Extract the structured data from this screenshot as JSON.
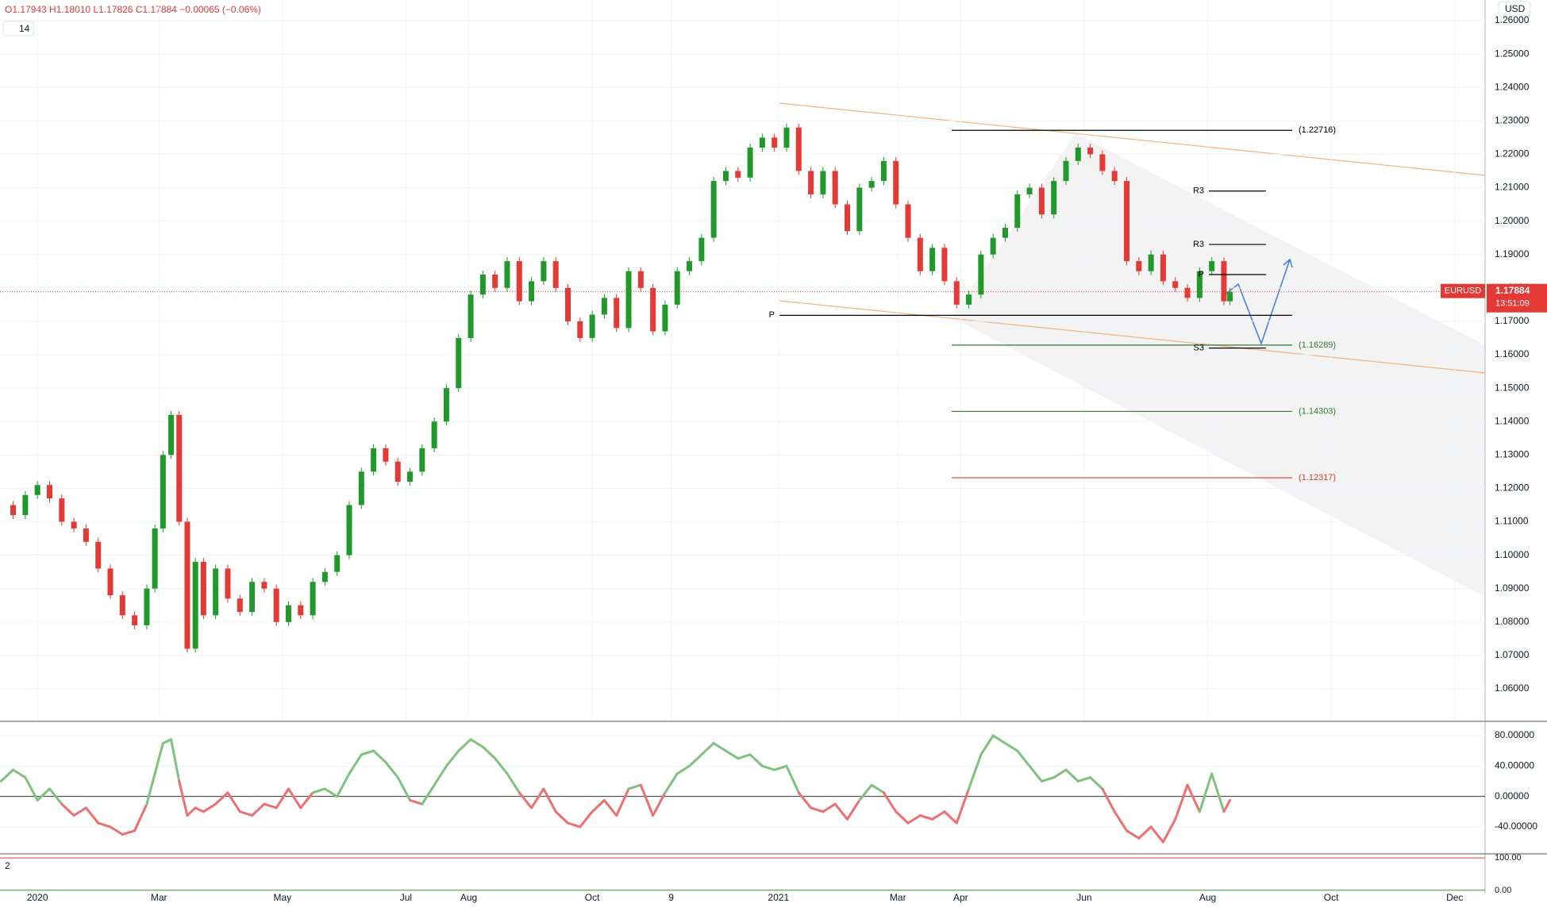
{
  "header": {
    "ohlc": "O1.17943 H1.18010 L1.17826 C1.17884 −0.00065 (−0.06%)",
    "interval": "14",
    "currency": "USD"
  },
  "chart_data": [
    {
      "type": "candle",
      "name": "EURUSD",
      "last_label": "1.17884",
      "countdown": "13:51:09",
      "last": 1.17884,
      "up_color": "#1f9a2a",
      "down_color": "#e53935",
      "x": [
        -18,
        -12,
        -6,
        0,
        6,
        12,
        18,
        24,
        30,
        36,
        42,
        48,
        54,
        58,
        62,
        66,
        70,
        74,
        78,
        82,
        88,
        94,
        100,
        106,
        112,
        118,
        124,
        130,
        136,
        142,
        148,
        154,
        160,
        166,
        172,
        178,
        184,
        190,
        196,
        202,
        208,
        214,
        220,
        226,
        232,
        238,
        244,
        250,
        256,
        262,
        268,
        274,
        280,
        286,
        292,
        298,
        304,
        310,
        316,
        322,
        328,
        334,
        340,
        346,
        352,
        358,
        364,
        370,
        376,
        382,
        388,
        394,
        400,
        406,
        412,
        418,
        424,
        430,
        436,
        442,
        448,
        454,
        460,
        466,
        472,
        478,
        484,
        490,
        496,
        502,
        508,
        514,
        520,
        526,
        532,
        538,
        544,
        550,
        556,
        562,
        568,
        574,
        580,
        586,
        589
      ],
      "values": [
        1.115,
        1.112,
        1.118,
        1.121,
        1.117,
        1.11,
        1.108,
        1.104,
        1.096,
        1.088,
        1.082,
        1.079,
        1.09,
        1.108,
        1.13,
        1.142,
        1.11,
        1.072,
        1.098,
        1.082,
        1.096,
        1.087,
        1.083,
        1.092,
        1.09,
        1.08,
        1.085,
        1.082,
        1.092,
        1.095,
        1.1,
        1.115,
        1.125,
        1.132,
        1.128,
        1.122,
        1.125,
        1.132,
        1.14,
        1.15,
        1.165,
        1.178,
        1.184,
        1.18,
        1.188,
        1.176,
        1.182,
        1.188,
        1.18,
        1.17,
        1.165,
        1.172,
        1.177,
        1.168,
        1.185,
        1.18,
        1.167,
        1.175,
        1.185,
        1.188,
        1.195,
        1.212,
        1.215,
        1.213,
        1.222,
        1.225,
        1.222,
        1.228,
        1.215,
        1.208,
        1.215,
        1.205,
        1.197,
        1.21,
        1.212,
        1.218,
        1.205,
        1.195,
        1.185,
        1.192,
        1.182,
        1.175,
        1.178,
        1.19,
        1.195,
        1.198,
        1.208,
        1.21,
        1.202,
        1.212,
        1.218,
        1.222,
        1.22,
        1.215,
        1.212,
        1.188,
        1.185,
        1.19,
        1.182,
        1.18,
        1.177,
        1.185,
        1.188,
        1.176,
        1.17884
      ],
      "xlim": [
        -18.5,
        715
      ],
      "xticks": [
        {
          "value": 0,
          "label": "2020"
        },
        {
          "value": 60,
          "label": "Mar"
        },
        {
          "value": 121,
          "label": "May"
        },
        {
          "value": 182,
          "label": "Jul"
        },
        {
          "value": 213,
          "label": "Aug"
        },
        {
          "value": 274,
          "label": "Oct"
        },
        {
          "value": 313,
          "label": "9"
        },
        {
          "value": 366,
          "label": "2021"
        },
        {
          "value": 425,
          "label": "Mar"
        },
        {
          "value": 456,
          "label": "Apr"
        },
        {
          "value": 517,
          "label": "Jun"
        },
        {
          "value": 578,
          "label": "Aug"
        },
        {
          "value": 639,
          "label": "Oct"
        },
        {
          "value": 700,
          "label": "Dec"
        }
      ],
      "ylim": [
        1.05074,
        1.26618
      ],
      "yticks": [
        {
          "value": 1.06,
          "label": "1.06000"
        },
        {
          "value": 1.07,
          "label": "1.07000"
        },
        {
          "value": 1.08,
          "label": "1.08000"
        },
        {
          "value": 1.09,
          "label": "1.09000"
        },
        {
          "value": 1.1,
          "label": "1.10000"
        },
        {
          "value": 1.11,
          "label": "1.11000"
        },
        {
          "value": 1.12,
          "label": "1.12000"
        },
        {
          "value": 1.13,
          "label": "1.13000"
        },
        {
          "value": 1.14,
          "label": "1.14000"
        },
        {
          "value": 1.15,
          "label": "1.15000"
        },
        {
          "value": 1.16,
          "label": "1.16000"
        },
        {
          "value": 1.17,
          "label": "1.17000"
        },
        {
          "value": 1.18,
          "label": "1.18000"
        },
        {
          "value": 1.19,
          "label": "1.19000"
        },
        {
          "value": 1.2,
          "label": "1.20000"
        },
        {
          "value": 1.21,
          "label": "1.21000"
        },
        {
          "value": 1.22,
          "label": "1.22000"
        },
        {
          "value": 1.23,
          "label": "1.23000"
        },
        {
          "value": 1.24,
          "label": "1.24000"
        },
        {
          "value": 1.25,
          "label": "1.25000"
        },
        {
          "value": 1.26,
          "label": "1.26000"
        }
      ],
      "grid": true,
      "levels": [
        {
          "label": "(1.22716)",
          "value": 1.22716,
          "color": "#000000"
        },
        {
          "label": "(1.16289)",
          "value": 1.16289,
          "color": "#2e7d32"
        },
        {
          "label": "(1.14303)",
          "value": 1.14303,
          "color": "#2e7d32"
        },
        {
          "label": "(1.12317)",
          "value": 1.12317,
          "color": "#e53935"
        },
        {
          "label": "R3",
          "value": 1.209,
          "color": "#000000"
        },
        {
          "label": "R3",
          "value": 1.193,
          "color": "#000000"
        },
        {
          "label": "P",
          "value": 1.1718,
          "color": "#000000"
        },
        {
          "label": "P",
          "value": 1.184,
          "color": "#000000"
        },
        {
          "label": "S3",
          "value": 1.162,
          "color": "#000000"
        }
      ]
    },
    {
      "type": "oscillator",
      "label": "2",
      "values": [
        20,
        35,
        25,
        -5,
        10,
        -10,
        -25,
        -15,
        -35,
        -40,
        -50,
        -45,
        -10,
        30,
        70,
        75,
        20,
        -25,
        -15,
        -20,
        -10,
        5,
        -20,
        -25,
        -10,
        -15,
        10,
        -15,
        5,
        10,
        0,
        30,
        55,
        60,
        45,
        25,
        -5,
        -10,
        15,
        40,
        60,
        75,
        65,
        50,
        30,
        5,
        -15,
        10,
        -20,
        -35,
        -40,
        -20,
        -5,
        -25,
        10,
        15,
        -25,
        5,
        30,
        40,
        55,
        70,
        60,
        50,
        55,
        40,
        35,
        40,
        5,
        -15,
        -20,
        -10,
        -30,
        -5,
        15,
        5,
        -20,
        -35,
        -25,
        -30,
        -20,
        -35,
        10,
        55,
        80,
        70,
        60,
        40,
        20,
        25,
        35,
        20,
        25,
        10,
        -20,
        -45,
        -55,
        -40,
        -60,
        -30,
        15,
        -20,
        30,
        -20,
        -5
      ],
      "up_color": "#7cc47c",
      "down_color": "#ef6f6f",
      "ylim": [
        -74.4,
        96.7
      ],
      "yticks": [
        {
          "value": 80,
          "label": "80.00000"
        },
        {
          "value": 40,
          "label": "40.00000"
        },
        {
          "value": 0,
          "label": "0.00000"
        },
        {
          "value": -40,
          "label": "-40.00000"
        }
      ]
    },
    {
      "type": "band",
      "label": "2",
      "ylim": [
        -10,
        110
      ],
      "yticks": [
        {
          "value": 100,
          "label": "100.00"
        },
        {
          "value": 0,
          "label": "0.00"
        }
      ]
    }
  ]
}
